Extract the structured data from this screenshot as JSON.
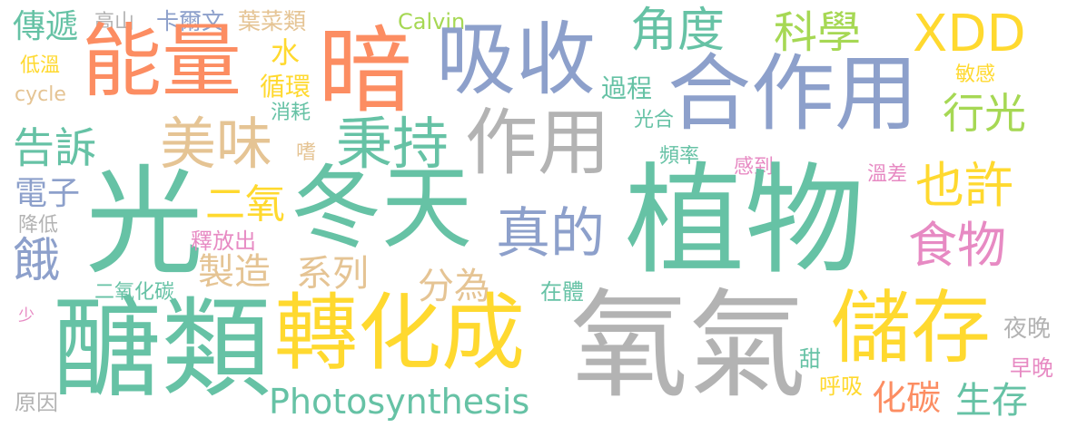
{
  "palette": {
    "green": "#66c2a5",
    "orange": "#fc8d62",
    "blue": "#8da0cb",
    "pink": "#e78ac3",
    "lime": "#a6d854",
    "yellow": "#ffd92f",
    "tan": "#e5c494",
    "gray": "#b3b3b3"
  },
  "words": [
    {
      "text": "傳遞",
      "color": "green"
    },
    {
      "text": "高山",
      "color": "gray"
    },
    {
      "text": "卡爾文",
      "color": "blue"
    },
    {
      "text": "葉菜類",
      "color": "tan"
    },
    {
      "text": "Calvin",
      "color": "lime"
    },
    {
      "text": "角度",
      "color": "green"
    },
    {
      "text": "科學",
      "color": "lime"
    },
    {
      "text": "XDD",
      "color": "yellow"
    },
    {
      "text": "低溫",
      "color": "yellow"
    },
    {
      "text": "能量",
      "color": "orange"
    },
    {
      "text": "暗",
      "color": "orange"
    },
    {
      "text": "吸收",
      "color": "blue"
    },
    {
      "text": "水",
      "color": "yellow"
    },
    {
      "text": "循環",
      "color": "yellow"
    },
    {
      "text": "過程",
      "color": "green"
    },
    {
      "text": "合作用",
      "color": "blue"
    },
    {
      "text": "敏感",
      "color": "yellow"
    },
    {
      "text": "cycle",
      "color": "tan"
    },
    {
      "text": "消耗",
      "color": "green"
    },
    {
      "text": "行光",
      "color": "lime"
    },
    {
      "text": "光合",
      "color": "green"
    },
    {
      "text": "告訴",
      "color": "green"
    },
    {
      "text": "美味",
      "color": "tan"
    },
    {
      "text": "秉持",
      "color": "green"
    },
    {
      "text": "作用",
      "color": "gray"
    },
    {
      "text": "嗜",
      "color": "tan"
    },
    {
      "text": "頻率",
      "color": "green"
    },
    {
      "text": "感到",
      "color": "pink"
    },
    {
      "text": "溫差",
      "color": "pink"
    },
    {
      "text": "也許",
      "color": "yellow"
    },
    {
      "text": "電子",
      "color": "blue"
    },
    {
      "text": "光",
      "color": "green"
    },
    {
      "text": "二氧",
      "color": "yellow"
    },
    {
      "text": "冬天",
      "color": "green"
    },
    {
      "text": "植物",
      "color": "green"
    },
    {
      "text": "降低",
      "color": "gray"
    },
    {
      "text": "釋放出",
      "color": "pink"
    },
    {
      "text": "真的",
      "color": "blue"
    },
    {
      "text": "食物",
      "color": "pink"
    },
    {
      "text": "餓",
      "color": "blue"
    },
    {
      "text": "製造",
      "color": "tan"
    },
    {
      "text": "系列",
      "color": "tan"
    },
    {
      "text": "分為",
      "color": "tan"
    },
    {
      "text": "二氧化碳",
      "color": "green"
    },
    {
      "text": "在體",
      "color": "green"
    },
    {
      "text": "少",
      "color": "pink"
    },
    {
      "text": "醣類",
      "color": "green"
    },
    {
      "text": "轉化成",
      "color": "yellow"
    },
    {
      "text": "氧氣",
      "color": "gray"
    },
    {
      "text": "儲存",
      "color": "yellow"
    },
    {
      "text": "夜晚",
      "color": "gray"
    },
    {
      "text": "甜",
      "color": "green"
    },
    {
      "text": "早晚",
      "color": "pink"
    },
    {
      "text": "Photosynthesis",
      "color": "green"
    },
    {
      "text": "呼吸",
      "color": "yellow"
    },
    {
      "text": "化碳",
      "color": "orange"
    },
    {
      "text": "生存",
      "color": "green"
    },
    {
      "text": "原因",
      "color": "gray"
    }
  ]
}
